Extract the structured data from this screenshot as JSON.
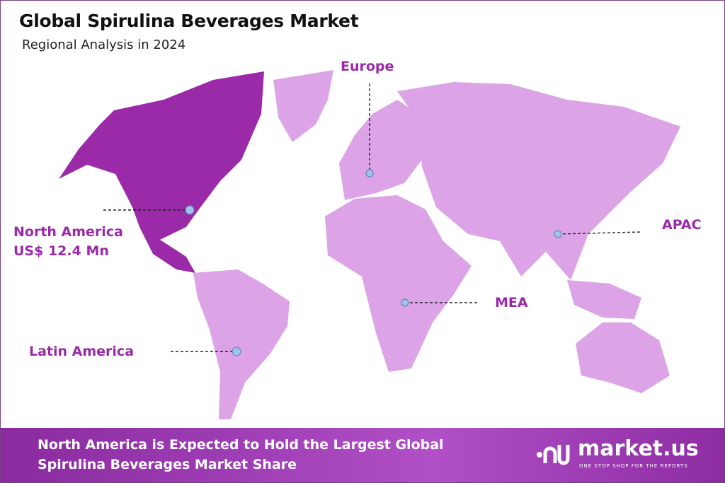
{
  "header": {
    "title": "Global Spirulina Beverages Market",
    "subtitle": "Regional Analysis in 2024"
  },
  "colors": {
    "highlight_region": "#9b2aa9",
    "other_regions": "#dca3e6",
    "label": "#9a2aa8",
    "marker": "#9fc3ec"
  },
  "regions": [
    {
      "name": "North America",
      "value": "US$ 12.4 Mn",
      "highlighted": true
    },
    {
      "name": "Europe",
      "highlighted": false
    },
    {
      "name": "APAC",
      "highlighted": false
    },
    {
      "name": "MEA",
      "highlighted": false
    },
    {
      "name": "Latin America",
      "highlighted": false
    }
  ],
  "footer": {
    "line1": "North America is Expected to Hold the Largest Global",
    "line2": "Spirulina Beverages Market Share",
    "logo_name": "market.us",
    "logo_tagline": "ONE STOP SHOP FOR THE REPORTS"
  }
}
